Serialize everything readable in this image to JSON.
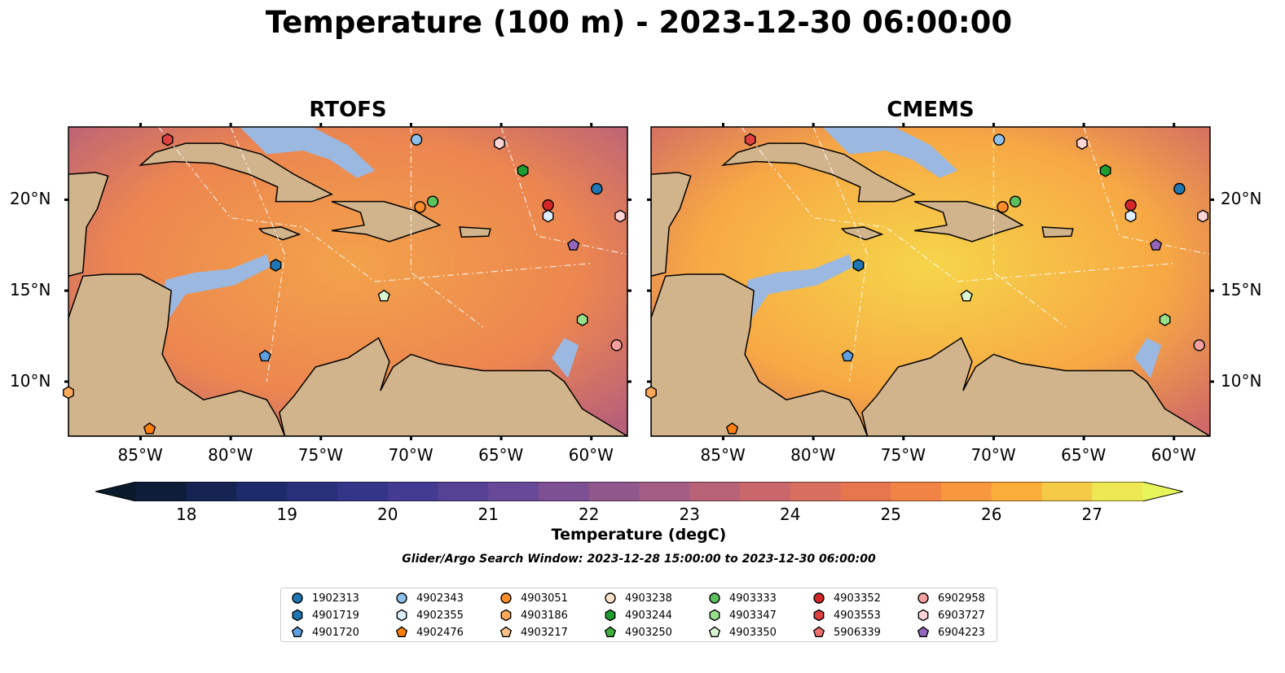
{
  "title": "Temperature (100 m) - 2023-12-30 06:00:00",
  "panels": [
    {
      "name": "RTOFS",
      "x_ticks": [
        "85°W",
        "80°W",
        "75°W",
        "70°W",
        "65°W",
        "60°W"
      ],
      "y_ticks": [
        "20°N",
        "15°N",
        "10°N"
      ]
    },
    {
      "name": "CMEMS",
      "x_ticks": [
        "85°W",
        "80°W",
        "75°W",
        "70°W",
        "65°W",
        "60°W"
      ],
      "y_ticks": [
        "20°N",
        "15°N",
        "10°N"
      ]
    }
  ],
  "map_extent": {
    "lon_min": -89,
    "lon_max": -58,
    "lat_min": 7,
    "lat_max": 24
  },
  "colors": {
    "land": "#d2b48c",
    "shallow_water": "#9bb8e0",
    "border": "#000000"
  },
  "colorbar": {
    "label": "Temperature (degC)",
    "ticks": [
      "18",
      "19",
      "20",
      "21",
      "22",
      "23",
      "24",
      "25",
      "26",
      "27"
    ],
    "min": 17.5,
    "max": 27.5,
    "extend": "both",
    "colormap": "thermal"
  },
  "search_window": "Glider/Argo Search Window: 2023-12-28 15:00:00 to 2023-12-30 06:00:00",
  "legend": [
    {
      "id": "1902313",
      "marker": "circle",
      "color": "#1f77b4"
    },
    {
      "id": "4901719",
      "marker": "hexagon",
      "color": "#1f77b4"
    },
    {
      "id": "4901720",
      "marker": "pentagon",
      "color": "#5fa0e0"
    },
    {
      "id": "4902343",
      "marker": "circle",
      "color": "#8ec0ea"
    },
    {
      "id": "4902355",
      "marker": "hexagon",
      "color": "#ddeeff"
    },
    {
      "id": "4902476",
      "marker": "pentagon",
      "color": "#ff7f0e"
    },
    {
      "id": "4903051",
      "marker": "circle",
      "color": "#ff8c2a"
    },
    {
      "id": "4903186",
      "marker": "hexagon",
      "color": "#ffa85a"
    },
    {
      "id": "4903217",
      "marker": "pentagon",
      "color": "#ffc28a"
    },
    {
      "id": "4903238",
      "marker": "circle",
      "color": "#ffe2c8"
    },
    {
      "id": "4903244",
      "marker": "hexagon",
      "color": "#1f9e2f"
    },
    {
      "id": "4903250",
      "marker": "pentagon",
      "color": "#3fae3f"
    },
    {
      "id": "4903333",
      "marker": "circle",
      "color": "#5cc05c"
    },
    {
      "id": "4903347",
      "marker": "hexagon",
      "color": "#98df8a"
    },
    {
      "id": "4903350",
      "marker": "pentagon",
      "color": "#d8f5d0"
    },
    {
      "id": "4903352",
      "marker": "circle",
      "color": "#d62728"
    },
    {
      "id": "4903553",
      "marker": "hexagon",
      "color": "#e04040"
    },
    {
      "id": "5906339",
      "marker": "pentagon",
      "color": "#f07070"
    },
    {
      "id": "6902958",
      "marker": "circle",
      "color": "#f4a0a0"
    },
    {
      "id": "6903727",
      "marker": "hexagon",
      "color": "#ffd4d4"
    },
    {
      "id": "6904223",
      "marker": "pentagon",
      "color": "#9467bd"
    }
  ],
  "platforms": [
    {
      "id": "4903553",
      "lon": -83.5,
      "lat": 23.3
    },
    {
      "id": "4902343",
      "lon": -69.7,
      "lat": 23.3
    },
    {
      "id": "6903727",
      "lon": -65.1,
      "lat": 23.1
    },
    {
      "id": "4903244",
      "lon": -63.8,
      "lat": 21.6
    },
    {
      "id": "1902313",
      "lon": -59.7,
      "lat": 20.6
    },
    {
      "id": "4903352",
      "lon": -62.4,
      "lat": 19.7
    },
    {
      "id": "4902355",
      "lon": -62.4,
      "lat": 19.1
    },
    {
      "id": "6903727",
      "lon": -58.4,
      "lat": 19.1
    },
    {
      "id": "4903333",
      "lon": -68.8,
      "lat": 19.9
    },
    {
      "id": "4903051",
      "lon": -69.5,
      "lat": 19.6
    },
    {
      "id": "6904223",
      "lon": -61.0,
      "lat": 17.5
    },
    {
      "id": "4901719",
      "lon": -77.5,
      "lat": 16.4
    },
    {
      "id": "4903350",
      "lon": -71.5,
      "lat": 14.7
    },
    {
      "id": "4903347",
      "lon": -60.5,
      "lat": 13.4
    },
    {
      "id": "6902958",
      "lon": -58.6,
      "lat": 12.0
    },
    {
      "id": "4901720",
      "lon": -78.1,
      "lat": 11.4
    },
    {
      "id": "4902476",
      "lon": -84.5,
      "lat": 7.4
    },
    {
      "id": "4903186",
      "lon": -89.0,
      "lat": 9.4
    }
  ]
}
